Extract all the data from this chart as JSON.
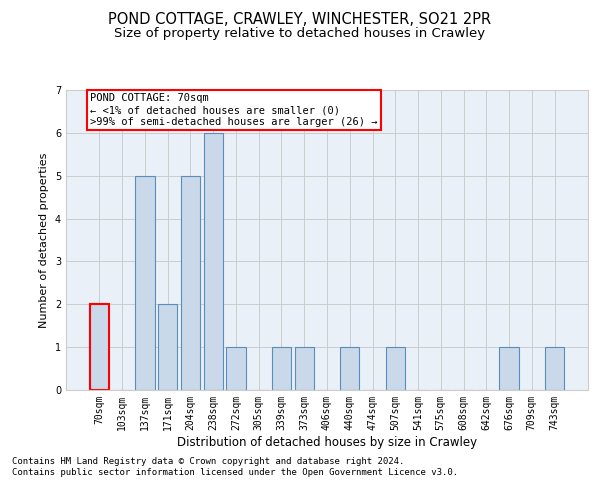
{
  "title1": "POND COTTAGE, CRAWLEY, WINCHESTER, SO21 2PR",
  "title2": "Size of property relative to detached houses in Crawley",
  "xlabel": "Distribution of detached houses by size in Crawley",
  "ylabel": "Number of detached properties",
  "categories": [
    "70sqm",
    "103sqm",
    "137sqm",
    "171sqm",
    "204sqm",
    "238sqm",
    "272sqm",
    "305sqm",
    "339sqm",
    "373sqm",
    "406sqm",
    "440sqm",
    "474sqm",
    "507sqm",
    "541sqm",
    "575sqm",
    "608sqm",
    "642sqm",
    "676sqm",
    "709sqm",
    "743sqm"
  ],
  "values": [
    2,
    0,
    5,
    2,
    5,
    6,
    1,
    0,
    1,
    1,
    0,
    1,
    0,
    1,
    0,
    0,
    0,
    0,
    1,
    0,
    1
  ],
  "highlight_idx": 0,
  "bar_color": "#c9d9ea",
  "bar_edge_color": "#5b8db8",
  "highlight_bar_edge_color": "red",
  "annotation_box_edge_color": "red",
  "annotation_text": "POND COTTAGE: 70sqm\n← <1% of detached houses are smaller (0)\n>99% of semi-detached houses are larger (26) →",
  "ylim": [
    0,
    7
  ],
  "yticks": [
    0,
    1,
    2,
    3,
    4,
    5,
    6,
    7
  ],
  "grid_color": "#cccccc",
  "bg_color": "#eaf0f8",
  "footer": "Contains HM Land Registry data © Crown copyright and database right 2024.\nContains public sector information licensed under the Open Government Licence v3.0.",
  "title1_fontsize": 10.5,
  "title2_fontsize": 9.5,
  "xlabel_fontsize": 8.5,
  "ylabel_fontsize": 8,
  "tick_fontsize": 7,
  "annotation_fontsize": 7.5,
  "footer_fontsize": 6.5
}
